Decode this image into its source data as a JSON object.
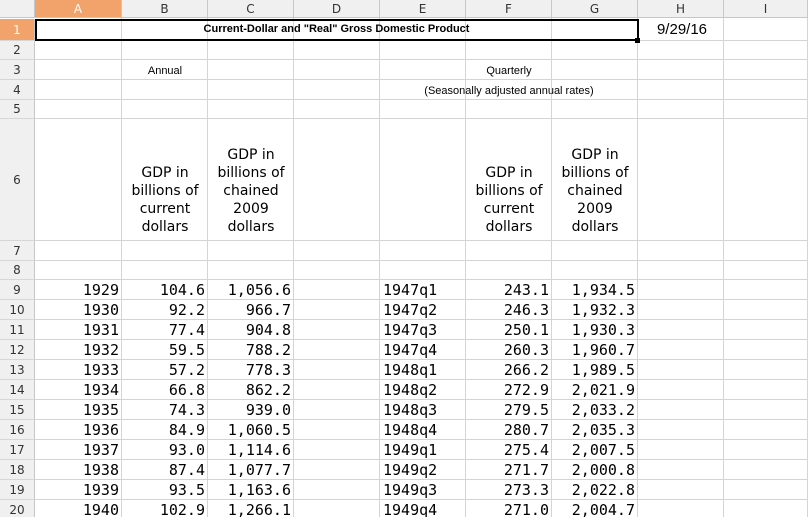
{
  "columns": [
    "A",
    "B",
    "C",
    "D",
    "E",
    "F",
    "G",
    "H",
    "I"
  ],
  "rows": [
    "1",
    "2",
    "3",
    "4",
    "5",
    "6",
    "7",
    "8",
    "9",
    "10",
    "11",
    "12",
    "13",
    "14",
    "15",
    "16",
    "17",
    "18",
    "19",
    "20"
  ],
  "title": "Current-Dollar and \"Real\" Gross Domestic Product",
  "date": "9/29/16",
  "annual_label": "Annual",
  "quarterly_label": "Quarterly",
  "seasonal_note": "(Seasonally adjusted annual rates)",
  "headers": {
    "b": "GDP in billions of current dollars",
    "c": "GDP in billions of chained 2009 dollars",
    "f": "GDP in billions of current dollars",
    "g": "GDP in billions of chained 2009 dollars"
  },
  "data": [
    {
      "year": "1929",
      "cur": "104.6",
      "real": "1,056.6",
      "q": "1947q1",
      "qcur": "243.1",
      "qreal": "1,934.5"
    },
    {
      "year": "1930",
      "cur": "92.2",
      "real": "966.7",
      "q": "1947q2",
      "qcur": "246.3",
      "qreal": "1,932.3"
    },
    {
      "year": "1931",
      "cur": "77.4",
      "real": "904.8",
      "q": "1947q3",
      "qcur": "250.1",
      "qreal": "1,930.3"
    },
    {
      "year": "1932",
      "cur": "59.5",
      "real": "788.2",
      "q": "1947q4",
      "qcur": "260.3",
      "qreal": "1,960.7"
    },
    {
      "year": "1933",
      "cur": "57.2",
      "real": "778.3",
      "q": "1948q1",
      "qcur": "266.2",
      "qreal": "1,989.5"
    },
    {
      "year": "1934",
      "cur": "66.8",
      "real": "862.2",
      "q": "1948q2",
      "qcur": "272.9",
      "qreal": "2,021.9"
    },
    {
      "year": "1935",
      "cur": "74.3",
      "real": "939.0",
      "q": "1948q3",
      "qcur": "279.5",
      "qreal": "2,033.2"
    },
    {
      "year": "1936",
      "cur": "84.9",
      "real": "1,060.5",
      "q": "1948q4",
      "qcur": "280.7",
      "qreal": "2,035.3"
    },
    {
      "year": "1937",
      "cur": "93.0",
      "real": "1,114.6",
      "q": "1949q1",
      "qcur": "275.4",
      "qreal": "2,007.5"
    },
    {
      "year": "1938",
      "cur": "87.4",
      "real": "1,077.7",
      "q": "1949q2",
      "qcur": "271.7",
      "qreal": "2,000.8"
    },
    {
      "year": "1939",
      "cur": "93.5",
      "real": "1,163.6",
      "q": "1949q3",
      "qcur": "273.3",
      "qreal": "2,022.8"
    },
    {
      "year": "1940",
      "cur": "102.9",
      "real": "1,266.1",
      "q": "1949q4",
      "qcur": "271.0",
      "qreal": "2,004.7"
    }
  ]
}
